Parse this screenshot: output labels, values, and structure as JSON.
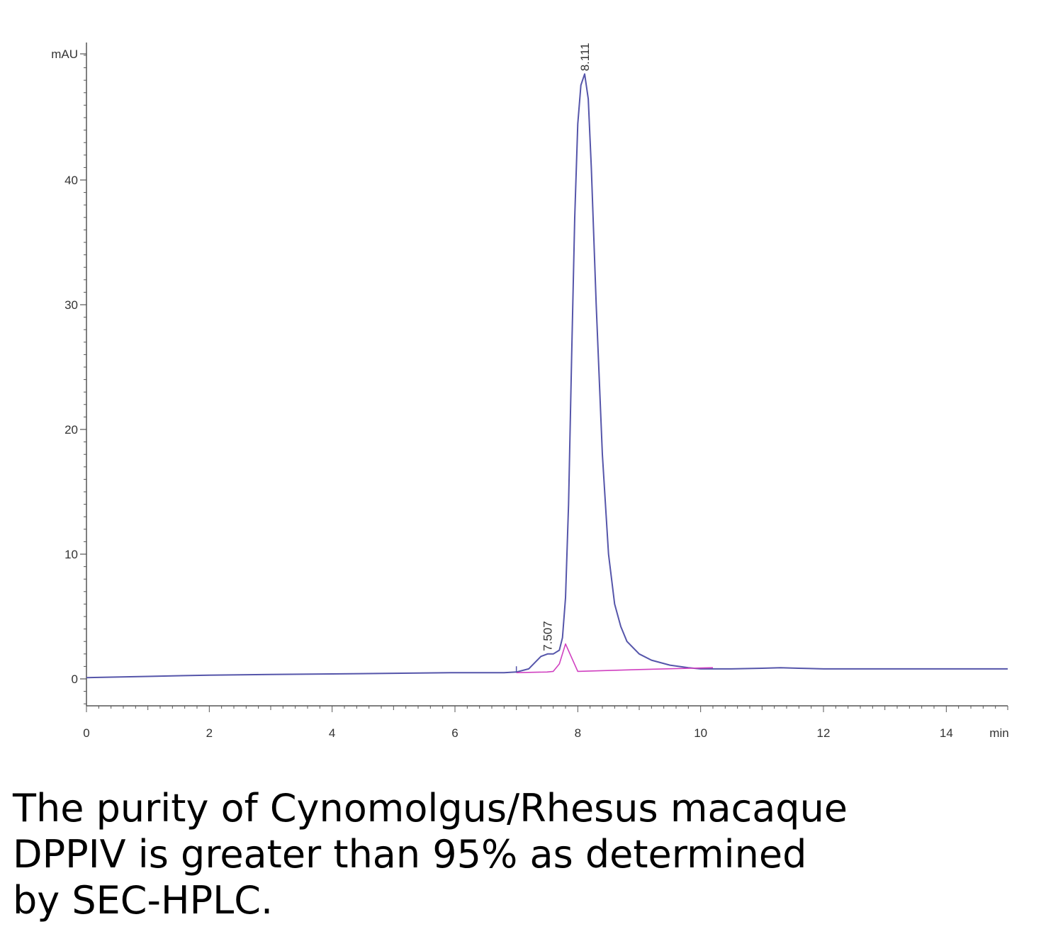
{
  "chart_data": {
    "type": "line",
    "xlabel": "min",
    "ylabel": "mAU",
    "xlim": [
      0,
      15
    ],
    "ylim": [
      -2.2,
      50.5
    ],
    "x_ticks": [
      0,
      2,
      4,
      6,
      8,
      10,
      12,
      14
    ],
    "x_tick_labels": [
      "0",
      "2",
      "4",
      "6",
      "8",
      "10",
      "12",
      "14"
    ],
    "y_ticks": [
      0,
      10,
      20,
      30,
      40
    ],
    "y_tick_labels": [
      "0",
      "10",
      "20",
      "30",
      "40"
    ],
    "grid": false,
    "series": [
      {
        "color": "#5555aa",
        "x": [
          0,
          1,
          2,
          3,
          4,
          5,
          6,
          6.8,
          7.0,
          7.2,
          7.3,
          7.4,
          7.507,
          7.6,
          7.7,
          7.75,
          7.8,
          7.85,
          7.9,
          7.95,
          8.0,
          8.05,
          8.111,
          8.17,
          8.22,
          8.3,
          8.4,
          8.5,
          8.6,
          8.7,
          8.8,
          9.0,
          9.2,
          9.5,
          9.8,
          10.0,
          10.5,
          11.0,
          11.3,
          11.6,
          12.0,
          13.0,
          14.0,
          15.0
        ],
        "y": [
          0.1,
          0.2,
          0.3,
          0.35,
          0.4,
          0.45,
          0.5,
          0.5,
          0.55,
          0.8,
          1.3,
          1.8,
          2.0,
          2.0,
          2.3,
          3.3,
          6.5,
          14.0,
          26.0,
          37.0,
          44.5,
          47.6,
          48.5,
          46.5,
          41.0,
          30.0,
          18.0,
          10.0,
          6.0,
          4.2,
          3.0,
          2.0,
          1.5,
          1.1,
          0.9,
          0.8,
          0.8,
          0.85,
          0.9,
          0.85,
          0.8,
          0.8,
          0.8,
          0.8
        ]
      },
      {
        "color": "#d040c0",
        "x": [
          7.0,
          7.5,
          7.6,
          7.7,
          7.8,
          8.0,
          9.0,
          10.2
        ],
        "y": [
          0.5,
          0.55,
          0.6,
          1.2,
          2.8,
          0.6,
          0.75,
          0.9
        ]
      }
    ],
    "peak_labels": [
      {
        "x": 7.507,
        "y": 2.0,
        "label": "7.507"
      },
      {
        "x": 8.111,
        "y": 48.5,
        "label": "8.111"
      }
    ]
  },
  "caption": [
    "The purity of Cynomolgus/Rhesus macaque",
    "DPPIV is greater than 95% as determined",
    "by SEC-HPLC."
  ]
}
